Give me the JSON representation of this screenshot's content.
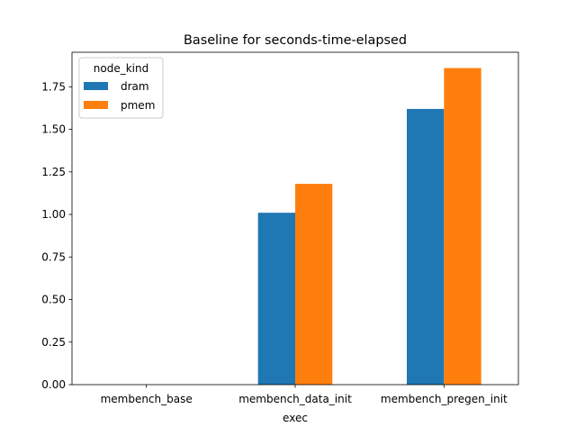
{
  "chart_data": {
    "type": "bar",
    "title": "Baseline for seconds-time-elapsed",
    "xlabel": "exec",
    "ylabel": "",
    "categories": [
      "membench_base",
      "membench_data_init",
      "membench_pregen_init"
    ],
    "series": [
      {
        "name": "dram",
        "color": "#1f77b4",
        "values": [
          0.0,
          1.01,
          1.62
        ]
      },
      {
        "name": "pmem",
        "color": "#ff7f0e",
        "values": [
          0.0,
          1.18,
          1.86
        ]
      }
    ],
    "ylim": [
      0,
      1.953
    ],
    "yticks": [
      0.0,
      0.25,
      0.5,
      0.75,
      1.0,
      1.25,
      1.5,
      1.75
    ],
    "ytick_labels": [
      "0.00",
      "0.25",
      "0.50",
      "0.75",
      "1.00",
      "1.25",
      "1.50",
      "1.75"
    ],
    "legend": {
      "title": "node_kind",
      "position": "top-left"
    },
    "grid": false
  }
}
